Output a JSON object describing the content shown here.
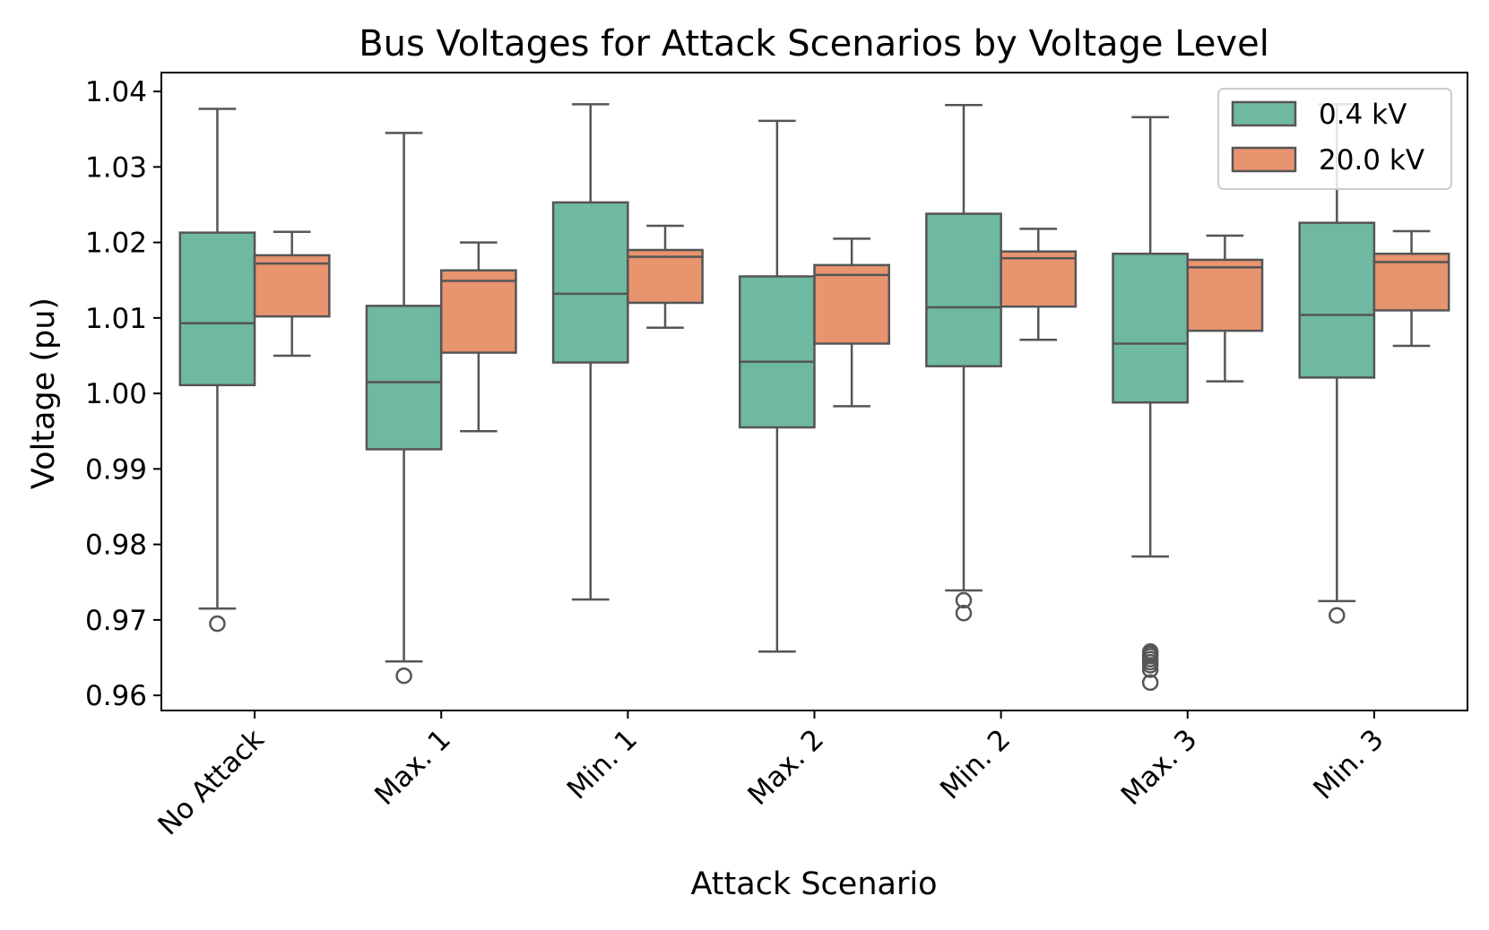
{
  "chart_data": {
    "type": "boxplot",
    "title": "Bus Voltages for Attack Scenarios by Voltage Level",
    "xlabel": "Attack Scenario",
    "ylabel": "Voltage (pu)",
    "ylim": [
      0.958,
      1.0425
    ],
    "yticks": [
      0.96,
      0.97,
      0.98,
      0.99,
      1.0,
      1.01,
      1.02,
      1.03,
      1.04
    ],
    "ytick_labels": [
      "0.96",
      "0.97",
      "0.98",
      "0.99",
      "1.00",
      "1.01",
      "1.02",
      "1.03",
      "1.04"
    ],
    "categories": [
      "No Attack",
      "Max. 1",
      "Min. 1",
      "Max. 2",
      "Min. 2",
      "Max. 3",
      "Min. 3"
    ],
    "legend_position": "top-right",
    "series": [
      {
        "name": "0.4 kV",
        "color": "#6fb8a1",
        "boxes": [
          {
            "whislo": 0.9715,
            "q1": 1.0011,
            "med": 1.0093,
            "q3": 1.0213,
            "whishi": 1.0377,
            "fliers": [
              0.9695
            ]
          },
          {
            "whislo": 0.9645,
            "q1": 0.9926,
            "med": 1.0015,
            "q3": 1.0116,
            "whishi": 1.0345,
            "fliers": [
              0.9626
            ]
          },
          {
            "whislo": 0.9727,
            "q1": 1.0041,
            "med": 1.0132,
            "q3": 1.0253,
            "whishi": 1.0383,
            "fliers": []
          },
          {
            "whislo": 0.9658,
            "q1": 0.9955,
            "med": 1.0042,
            "q3": 1.0155,
            "whishi": 1.0361,
            "fliers": []
          },
          {
            "whislo": 0.9739,
            "q1": 1.0036,
            "med": 1.0114,
            "q3": 1.0238,
            "whishi": 1.0382,
            "fliers": [
              0.9726,
              0.9709
            ]
          },
          {
            "whislo": 0.9784,
            "q1": 0.9988,
            "med": 1.0066,
            "q3": 1.0185,
            "whishi": 1.0366,
            "fliers": [
              0.9658,
              0.9655,
              0.9652,
              0.9648,
              0.9644,
              0.964,
              0.9634,
              0.9617
            ]
          },
          {
            "whislo": 0.9725,
            "q1": 1.0021,
            "med": 1.0104,
            "q3": 1.0226,
            "whishi": 1.0383,
            "fliers": [
              0.9706
            ]
          }
        ]
      },
      {
        "name": "20.0 kV",
        "color": "#e8946f",
        "boxes": [
          {
            "whislo": 1.005,
            "q1": 1.0102,
            "med": 1.0172,
            "q3": 1.0183,
            "whishi": 1.0214,
            "fliers": []
          },
          {
            "whislo": 0.995,
            "q1": 1.0054,
            "med": 1.0149,
            "q3": 1.0163,
            "whishi": 1.02,
            "fliers": []
          },
          {
            "whislo": 1.0087,
            "q1": 1.012,
            "med": 1.0181,
            "q3": 1.019,
            "whishi": 1.0222,
            "fliers": []
          },
          {
            "whislo": 0.9983,
            "q1": 1.0066,
            "med": 1.0157,
            "q3": 1.017,
            "whishi": 1.0205,
            "fliers": []
          },
          {
            "whislo": 1.0071,
            "q1": 1.0115,
            "med": 1.0179,
            "q3": 1.0188,
            "whishi": 1.0218,
            "fliers": []
          },
          {
            "whislo": 1.0016,
            "q1": 1.0083,
            "med": 1.0167,
            "q3": 1.0177,
            "whishi": 1.0209,
            "fliers": []
          },
          {
            "whislo": 1.0063,
            "q1": 1.011,
            "med": 1.0174,
            "q3": 1.0185,
            "whishi": 1.0215,
            "fliers": []
          }
        ]
      }
    ]
  }
}
